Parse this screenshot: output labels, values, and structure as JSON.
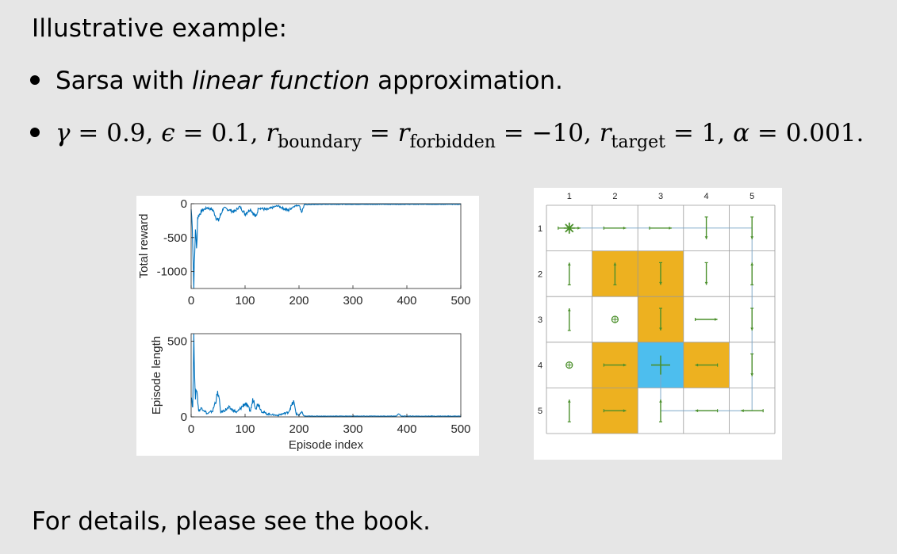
{
  "slide": {
    "heading": "Illustrative example:",
    "bullet1_prefix": "Sarsa with ",
    "bullet1_italic": "linear function",
    "bullet1_suffix": " approximation.",
    "params": {
      "gamma_sym": "γ",
      "gamma_val": "0.9",
      "eps_sym": "ϵ",
      "eps_val": "0.1",
      "r_sym": "r",
      "boundary_sub": "boundary",
      "forbidden_sub": "forbidden",
      "boundary_val": "−10",
      "target_sub": "target",
      "target_val": "1",
      "alpha_sym": "α",
      "alpha_val": "0.001"
    },
    "footer": "For details, please see the book."
  },
  "chart_data": [
    {
      "type": "line",
      "xlabel": "",
      "ylabel": "Total reward",
      "xlim": [
        0,
        500
      ],
      "ylim": [
        -1250,
        0
      ],
      "xticks": [
        "0",
        "100",
        "200",
        "300",
        "400",
        "500"
      ],
      "yticks": [
        "0",
        "-500",
        "-1000"
      ],
      "series": [
        {
          "color": "#0072bd",
          "description_points": [
            [
              0,
              -80
            ],
            [
              2,
              -300
            ],
            [
              5,
              -1250
            ],
            [
              8,
              -350
            ],
            [
              10,
              -700
            ],
            [
              12,
              -200
            ],
            [
              20,
              -100
            ],
            [
              30,
              -60
            ],
            [
              40,
              -90
            ],
            [
              50,
              -260
            ],
            [
              60,
              -60
            ],
            [
              80,
              -120
            ],
            [
              90,
              -40
            ],
            [
              100,
              -150
            ],
            [
              110,
              -80
            ],
            [
              120,
              -200
            ],
            [
              125,
              -60
            ],
            [
              140,
              -90
            ],
            [
              160,
              -30
            ],
            [
              180,
              -100
            ],
            [
              190,
              -40
            ],
            [
              200,
              -20
            ],
            [
              205,
              -120
            ],
            [
              210,
              -15
            ],
            [
              250,
              -10
            ],
            [
              300,
              -10
            ],
            [
              350,
              -10
            ],
            [
              400,
              -10
            ],
            [
              450,
              -10
            ],
            [
              500,
              -10
            ]
          ]
        }
      ]
    },
    {
      "type": "line",
      "xlabel": "Episode index",
      "ylabel": "Episode length",
      "xlim": [
        0,
        500
      ],
      "ylim": [
        0,
        550
      ],
      "xticks": [
        "0",
        "100",
        "200",
        "300",
        "400",
        "500"
      ],
      "yticks": [
        "0",
        "500"
      ],
      "series": [
        {
          "color": "#0072bd",
          "description_points": [
            [
              0,
              150
            ],
            [
              3,
              60
            ],
            [
              5,
              550
            ],
            [
              8,
              100
            ],
            [
              10,
              200
            ],
            [
              14,
              40
            ],
            [
              20,
              60
            ],
            [
              30,
              20
            ],
            [
              40,
              40
            ],
            [
              50,
              160
            ],
            [
              55,
              30
            ],
            [
              70,
              60
            ],
            [
              85,
              30
            ],
            [
              100,
              90
            ],
            [
              110,
              40
            ],
            [
              115,
              120
            ],
            [
              120,
              60
            ],
            [
              125,
              90
            ],
            [
              130,
              40
            ],
            [
              140,
              20
            ],
            [
              160,
              10
            ],
            [
              180,
              30
            ],
            [
              190,
              100
            ],
            [
              195,
              20
            ],
            [
              200,
              10
            ],
            [
              205,
              30
            ],
            [
              210,
              5
            ],
            [
              300,
              5
            ],
            [
              380,
              5
            ],
            [
              385,
              20
            ],
            [
              390,
              5
            ],
            [
              500,
              5
            ]
          ]
        }
      ]
    }
  ],
  "gridworld": {
    "col_labels": [
      "1",
      "2",
      "3",
      "4",
      "5"
    ],
    "row_labels": [
      "1",
      "2",
      "3",
      "4",
      "5"
    ],
    "forbidden_color": "#edb120",
    "target_color": "#4dbeee",
    "arrow_color": "#4a8f2a",
    "path_color": "#7fa8c8",
    "forbidden_cells": [
      [
        2,
        2
      ],
      [
        2,
        3
      ],
      [
        3,
        3
      ],
      [
        4,
        2
      ],
      [
        4,
        4
      ],
      [
        5,
        2
      ]
    ],
    "target_cell": [
      4,
      3
    ],
    "start_cell": [
      1,
      1
    ]
  }
}
